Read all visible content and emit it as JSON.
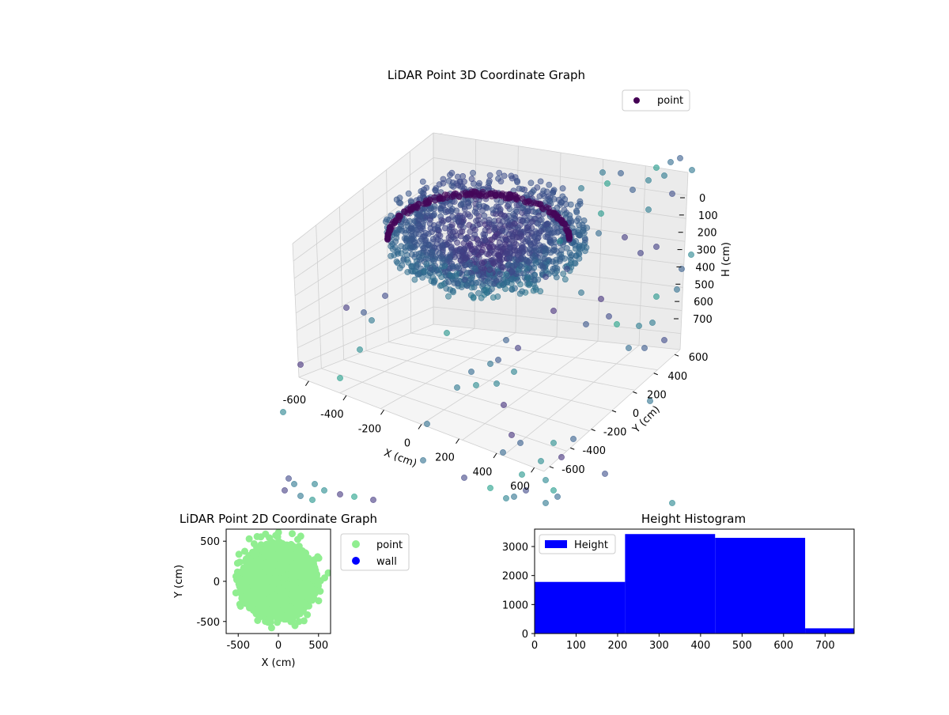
{
  "figure": {
    "colors": {
      "point_3d_legend": "#440154",
      "point_2d": "#90ee90",
      "wall_2d": "#0000ff",
      "hist_bar": "#0000ff",
      "axis": "#000000"
    }
  },
  "chart_data": [
    {
      "type": "scatter",
      "projection": "3d",
      "title": "LiDAR Point 3D Coordinate Graph",
      "xlabel": "X (cm)",
      "ylabel": "Y (cm)",
      "zlabel": "H (cm)",
      "xticks": [
        "-600",
        "-400",
        "-200",
        "0",
        "200",
        "400",
        "600"
      ],
      "yticks": [
        "-600",
        "-400",
        "-200",
        "0",
        "200",
        "400",
        "600"
      ],
      "zticks": [
        "0",
        "100",
        "200",
        "300",
        "400",
        "500",
        "600",
        "700"
      ],
      "xlim": [
        -650,
        650
      ],
      "ylim": [
        -650,
        650
      ],
      "zlim": [
        0,
        770
      ],
      "z_inverted": true,
      "colormap": "viridis",
      "grid": true,
      "legend": {
        "position": "top-right",
        "entries": [
          "point"
        ]
      },
      "series": [
        {
          "name": "point",
          "description": "dense dome-shaped point cloud centered near origin, radius ~250-400 cm, plus sparse outliers near edges"
        }
      ]
    },
    {
      "type": "scatter",
      "title": "LiDAR Point 2D Coordinate Graph",
      "xlabel": "X (cm)",
      "ylabel": "Y (cm)",
      "xticks": [
        "-500",
        "0",
        "500"
      ],
      "yticks": [
        "-500",
        "0",
        "500"
      ],
      "xlim": [
        -650,
        650
      ],
      "ylim": [
        -650,
        650
      ],
      "legend": {
        "position": "outside-right",
        "entries": [
          "point",
          "wall"
        ]
      },
      "series": [
        {
          "name": "point",
          "color": "#90ee90",
          "description": "dense disk of points radius ~500 cm centered at origin"
        },
        {
          "name": "wall",
          "color": "#0000ff",
          "values": []
        }
      ]
    },
    {
      "type": "bar",
      "subtype": "histogram",
      "title": "Height Histogram",
      "xticks": [
        "0",
        "100",
        "200",
        "300",
        "400",
        "500",
        "600",
        "700"
      ],
      "yticks": [
        "0",
        "1000",
        "2000",
        "3000"
      ],
      "xlim": [
        0,
        770
      ],
      "ylim": [
        0,
        3600
      ],
      "legend": {
        "position": "top-left",
        "entries": [
          "Height"
        ]
      },
      "series": [
        {
          "name": "Height",
          "color": "#0000ff",
          "bins": [
            {
              "start": 0,
              "end": 218,
              "count": 1780
            },
            {
              "start": 218,
              "end": 435,
              "count": 3430
            },
            {
              "start": 435,
              "end": 652,
              "count": 3300
            },
            {
              "start": 652,
              "end": 770,
              "count": 180
            }
          ]
        }
      ]
    }
  ]
}
